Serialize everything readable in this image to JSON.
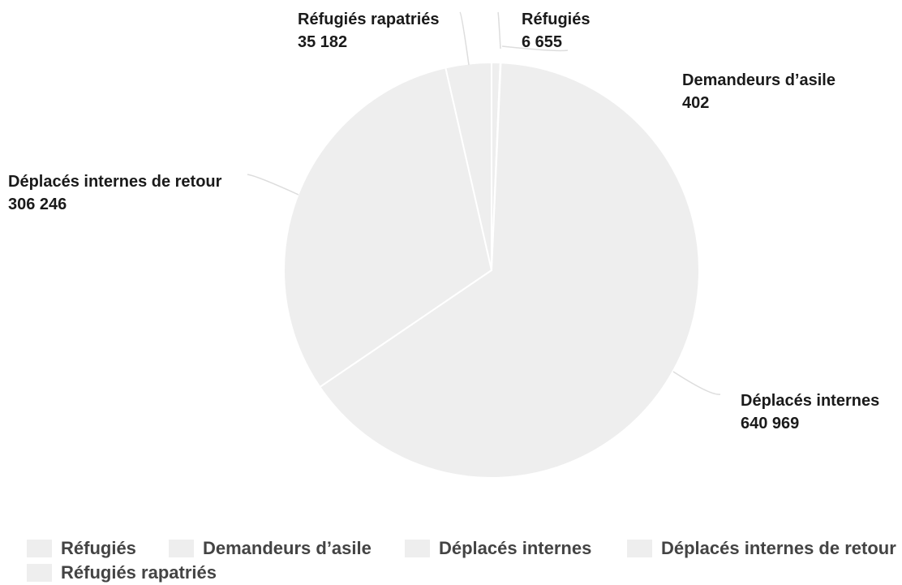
{
  "colors": {
    "slice_fill": "#eeeeee",
    "slice_stroke": "#ffffff",
    "connector": "#dddddd",
    "label_text": "#1a1a1a",
    "legend_text": "#444444"
  },
  "chart_data": {
    "type": "pie",
    "title": "",
    "slices": [
      {
        "label": "Réfugiés",
        "value": 6655,
        "display_value": "6 655"
      },
      {
        "label": "Demandeurs d’asile",
        "value": 402,
        "display_value": "402"
      },
      {
        "label": "Déplacés internes",
        "value": 640969,
        "display_value": "640 969"
      },
      {
        "label": "Déplacés internes de retour",
        "value": 306246,
        "display_value": "306 246"
      },
      {
        "label": "Réfugiés rapatriés",
        "value": 35182,
        "display_value": "35 182"
      }
    ],
    "legend": {
      "placement": "bottom",
      "items": [
        "Réfugiés",
        "Demandeurs d’asile",
        "Déplacés internes",
        "Déplacés internes de retour",
        "Réfugiés rapatriés"
      ]
    }
  }
}
